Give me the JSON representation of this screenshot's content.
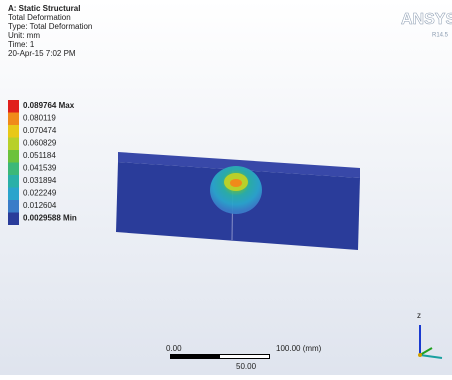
{
  "header": {
    "title": "A: Static Structural",
    "lines": [
      "Total Deformation",
      "Type: Total Deformation",
      "Unit: mm",
      "Time: 1",
      "20-Apr-15 7:02 PM"
    ]
  },
  "legend": [
    {
      "label": "0.089764 Max",
      "color": "#e0201c"
    },
    {
      "label": "0.080119",
      "color": "#f08a1a"
    },
    {
      "label": "0.070474",
      "color": "#e8c818"
    },
    {
      "label": "0.060829",
      "color": "#b8d02a"
    },
    {
      "label": "0.051184",
      "color": "#6cc23c"
    },
    {
      "label": "0.041539",
      "color": "#3cb878"
    },
    {
      "label": "0.031894",
      "color": "#2ab0a8"
    },
    {
      "label": "0.022249",
      "color": "#2aa4cc"
    },
    {
      "label": "0.012604",
      "color": "#3a7cc8"
    },
    {
      "label": "0.0029588 Min",
      "color": "#2a3c9a"
    }
  ],
  "logo": {
    "name": "ANSYS",
    "version": "R14.5"
  },
  "scale_bar": {
    "start": "0.00",
    "end": "100.00 (mm)",
    "middle": "50.00"
  },
  "triad": {
    "axis": "z"
  }
}
